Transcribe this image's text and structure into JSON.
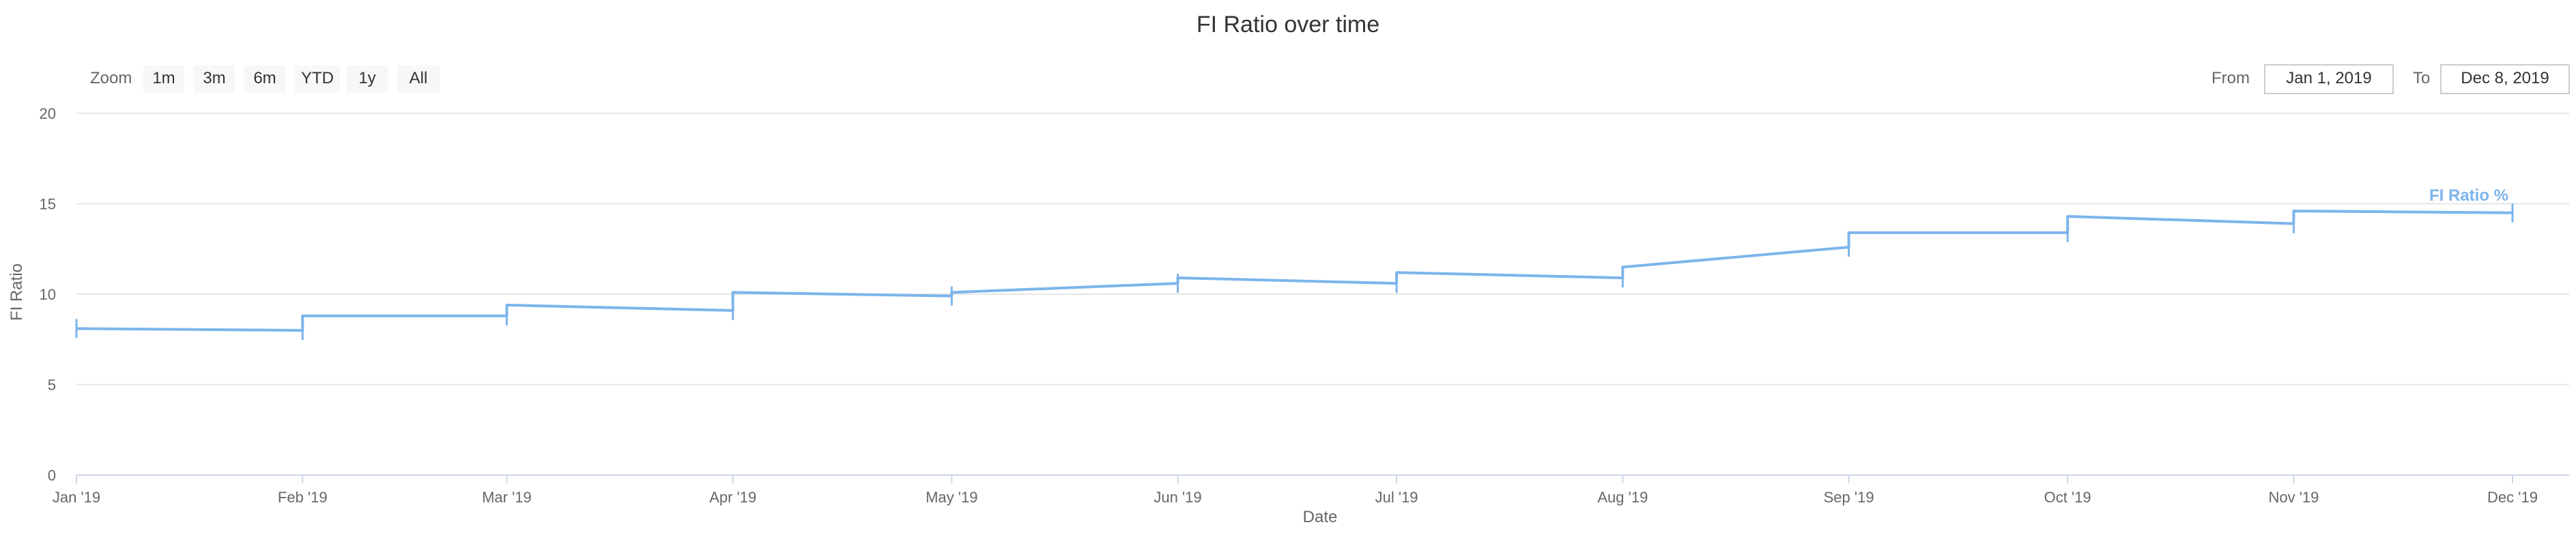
{
  "range_selector": {
    "zoom_label": "Zoom",
    "buttons": [
      "1m",
      "3m",
      "6m",
      "YTD",
      "1y",
      "All"
    ],
    "from_label": "From",
    "from_value": "Jan 1, 2019",
    "to_label": "To",
    "to_value": "Dec 8, 2019"
  },
  "chart_data": {
    "type": "line",
    "title": "FI Ratio over time",
    "xlabel": "Date",
    "ylabel": "FI Ratio",
    "ylim": [
      0,
      20
    ],
    "yticks": [
      0,
      5,
      10,
      15,
      20
    ],
    "xlim": [
      "2019-01-01",
      "2019-12-01"
    ],
    "xticks": [
      {
        "date": "2019-01-01",
        "label": "Jan '19"
      },
      {
        "date": "2019-02-01",
        "label": "Feb '19"
      },
      {
        "date": "2019-03-01",
        "label": "Mar '19"
      },
      {
        "date": "2019-04-01",
        "label": "Apr '19"
      },
      {
        "date": "2019-05-01",
        "label": "May '19"
      },
      {
        "date": "2019-06-01",
        "label": "Jun '19"
      },
      {
        "date": "2019-07-01",
        "label": "Jul '19"
      },
      {
        "date": "2019-08-01",
        "label": "Aug '19"
      },
      {
        "date": "2019-09-01",
        "label": "Sep '19"
      },
      {
        "date": "2019-10-01",
        "label": "Oct '19"
      },
      {
        "date": "2019-11-01",
        "label": "Nov '19"
      },
      {
        "date": "2019-12-01",
        "label": "Dec '19"
      }
    ],
    "grid": true,
    "series": [
      {
        "name": "FI Ratio %",
        "color": "#7cb5ec",
        "points": [
          {
            "x": "2019-01-01",
            "y": 8.1
          },
          {
            "x": "2019-02-01",
            "y": 8.0
          },
          {
            "x": "2019-02-01",
            "y": 8.8
          },
          {
            "x": "2019-03-01",
            "y": 8.8
          },
          {
            "x": "2019-03-01",
            "y": 9.4
          },
          {
            "x": "2019-04-01",
            "y": 9.1
          },
          {
            "x": "2019-04-01",
            "y": 10.1
          },
          {
            "x": "2019-05-01",
            "y": 9.9
          },
          {
            "x": "2019-05-01",
            "y": 10.1
          },
          {
            "x": "2019-06-01",
            "y": 10.6
          },
          {
            "x": "2019-06-01",
            "y": 10.9
          },
          {
            "x": "2019-07-01",
            "y": 10.6
          },
          {
            "x": "2019-07-01",
            "y": 11.2
          },
          {
            "x": "2019-08-01",
            "y": 10.9
          },
          {
            "x": "2019-08-01",
            "y": 11.5
          },
          {
            "x": "2019-09-01",
            "y": 12.6
          },
          {
            "x": "2019-09-01",
            "y": 13.4
          },
          {
            "x": "2019-10-01",
            "y": 13.4
          },
          {
            "x": "2019-10-01",
            "y": 14.3
          },
          {
            "x": "2019-11-01",
            "y": 13.9
          },
          {
            "x": "2019-11-01",
            "y": 14.6
          },
          {
            "x": "2019-12-01",
            "y": 14.5
          }
        ]
      }
    ]
  }
}
